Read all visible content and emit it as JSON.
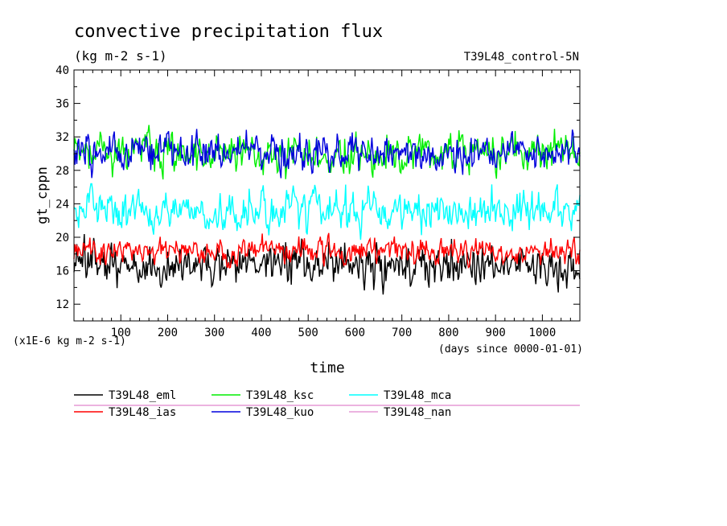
{
  "chart_data": {
    "type": "line",
    "title": "convective precipitation flux",
    "subtitle": "(kg m-2 s-1)",
    "run_label": "T39L48_control-5N",
    "xlabel": "time",
    "xunits": "(days since 0000-01-01)",
    "ylabel": "gt_cppn",
    "yunits": "(x1E-6 kg m-2 s-1)",
    "xlim": [
      0,
      1080
    ],
    "ylim": [
      10,
      40
    ],
    "xticks": [
      100,
      200,
      300,
      400,
      500,
      600,
      700,
      800,
      900,
      1000
    ],
    "yticks": [
      12,
      16,
      20,
      24,
      28,
      32,
      36,
      40
    ],
    "series": [
      {
        "name": "T39L48_eml",
        "color": "#000000",
        "mean": 16.6,
        "amp": 1.5,
        "seed": 11
      },
      {
        "name": "T39L48_ias",
        "color": "#ff0000",
        "mean": 18.3,
        "amp": 0.9,
        "seed": 23
      },
      {
        "name": "T39L48_ksc",
        "color": "#00ee00",
        "mean": 30.2,
        "amp": 1.4,
        "seed": 37
      },
      {
        "name": "T39L48_kuo",
        "color": "#0000dd",
        "mean": 30.3,
        "amp": 1.3,
        "seed": 53
      },
      {
        "name": "T39L48_mca",
        "color": "#00ffff",
        "mean": 23.3,
        "amp": 1.4,
        "seed": 71
      },
      {
        "name": "T39L48_nan",
        "color": "#e69ad6",
        "mean": null,
        "amp": 0,
        "seed": 0
      }
    ]
  }
}
